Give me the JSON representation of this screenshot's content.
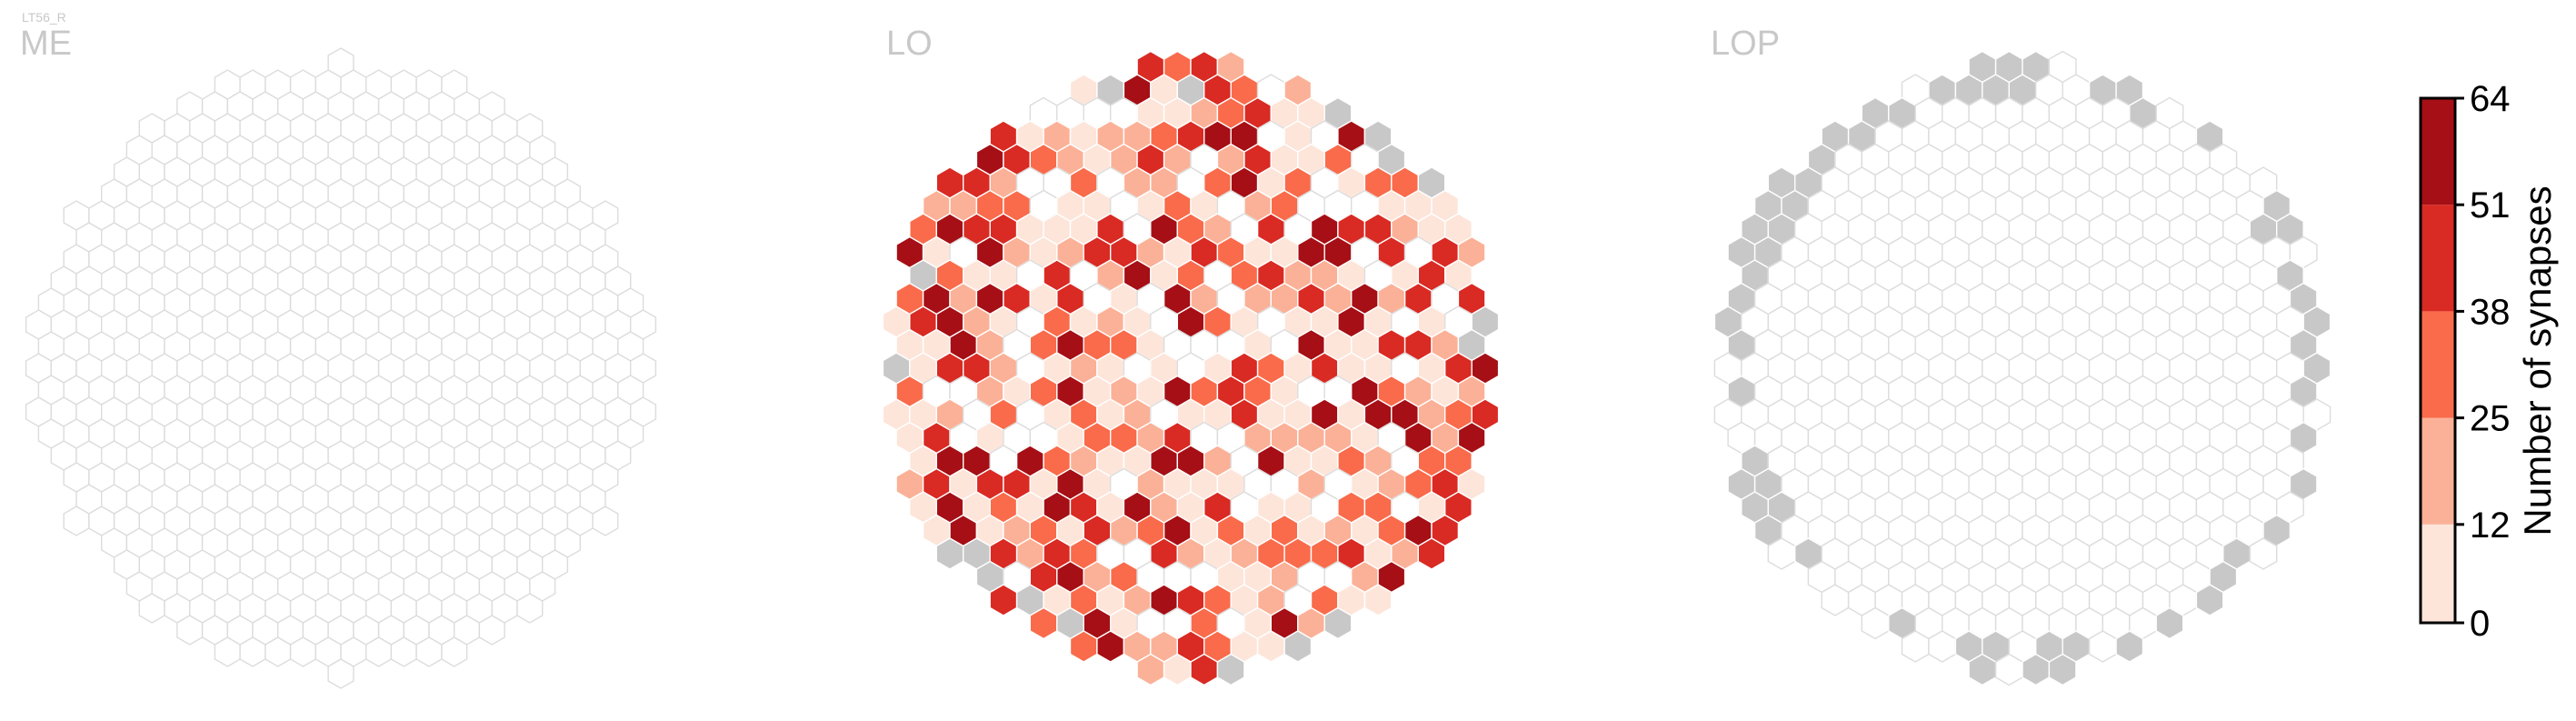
{
  "figure": {
    "cell_type": "LT56_R"
  },
  "palette": {
    "outline_hex": "#dcdcdc",
    "background_hex": "#ffffff",
    "missing_hex": "#c8c8c8",
    "title_hex": "#c8c8c8",
    "bins": [
      "#fde5da",
      "#fbb197",
      "#f96b4b",
      "#d92a23",
      "#a50f15"
    ]
  },
  "chart_data": [
    {
      "type": "heatmap",
      "layout": "hexagonal",
      "panel": "ME",
      "title": "ME",
      "hex_radius": 16,
      "visible_columns": 0
    },
    {
      "type": "heatmap",
      "layout": "hexagonal",
      "panel": "LO",
      "title": "LO",
      "hex_radius": 17,
      "synapse_count_max": 64
    },
    {
      "type": "heatmap",
      "layout": "hexagonal",
      "panel": "LOP",
      "title": "LOP",
      "hex_radius": 17,
      "visible_columns": 0
    }
  ],
  "colorbar": {
    "label": "Number of synapses",
    "ticks": [
      "0",
      "12",
      "25",
      "38",
      "51",
      "64"
    ],
    "tick_values": [
      0,
      12,
      25,
      38,
      51,
      64
    ],
    "range": [
      0,
      64
    ]
  }
}
